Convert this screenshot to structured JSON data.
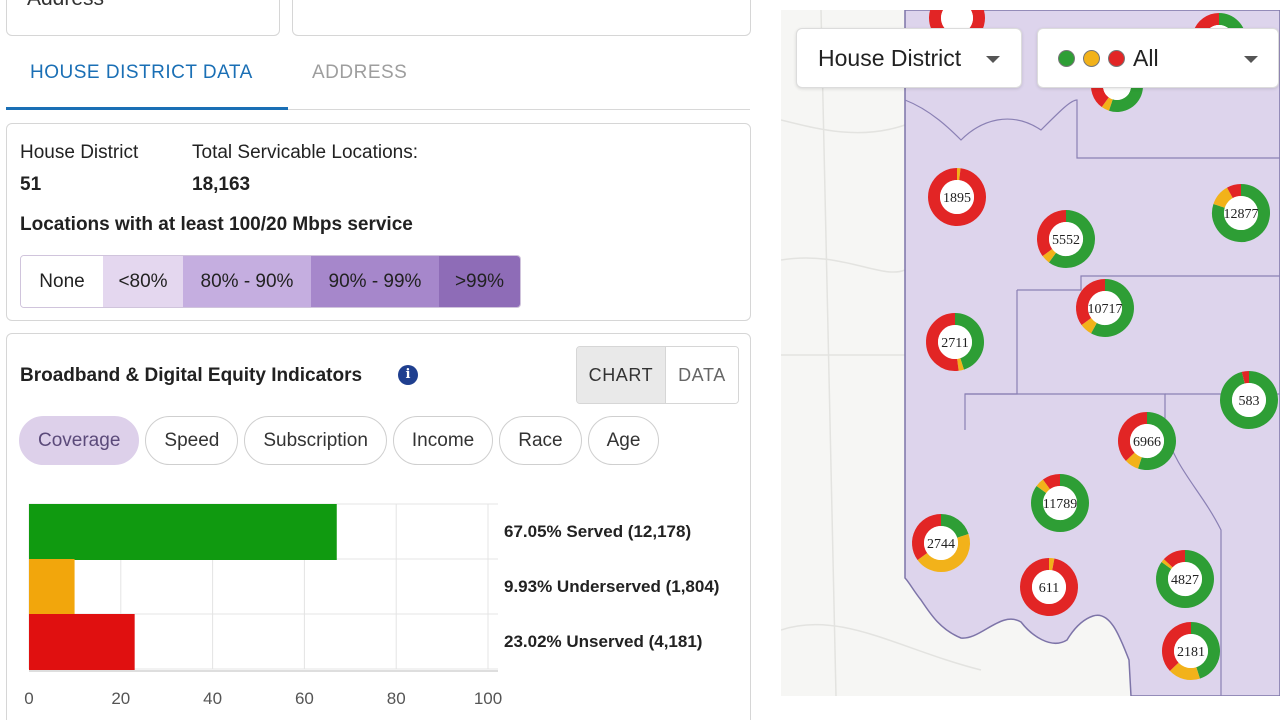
{
  "search": {
    "address_label": "Address"
  },
  "tabs": [
    {
      "label": "HOUSE DISTRICT DATA"
    },
    {
      "label": "ADDRESS"
    }
  ],
  "summary": {
    "district_label": "House District",
    "district_value": "51",
    "locations_label": "Total Servicable Locations:",
    "locations_value": "18,163",
    "service_title": "Locations with at least 100/20 Mbps service",
    "legend": [
      {
        "label": "None",
        "color": "#ffffff"
      },
      {
        "label": "<80%",
        "color": "#e4d7ef"
      },
      {
        "label": "80% - 90%",
        "color": "#c5aee0"
      },
      {
        "label": "90% - 99%",
        "color": "#a687cb"
      },
      {
        "label": ">99%",
        "color": "#8e6cb7"
      }
    ]
  },
  "indicators": {
    "title": "Broadband & Digital Equity Indicators",
    "info_icon": "info-icon",
    "view_toggle": [
      "CHART",
      "DATA"
    ],
    "pills": [
      "Coverage",
      "Speed",
      "Subscription",
      "Income",
      "Race",
      "Age"
    ],
    "selected_pill": "Coverage"
  },
  "chart_data": {
    "type": "bar",
    "orientation": "horizontal",
    "categories": [
      "Served",
      "Underserved",
      "Unserved"
    ],
    "values": [
      67.05,
      9.93,
      23.02
    ],
    "labels": [
      "67.05% Served (12,178)",
      "9.93% Underserved (1,804)",
      "23.02% Unserved (4,181)"
    ],
    "colors": [
      "#109a10",
      "#f2a60c",
      "#e01010"
    ],
    "xlim": [
      0,
      100
    ],
    "xticks": [
      0,
      20,
      40,
      60,
      80,
      100
    ],
    "grid": true
  },
  "map": {
    "district_select": "House District",
    "status_select": "All",
    "status_colors": [
      "#2e9e35",
      "#f2b21a",
      "#e22525"
    ],
    "markers": [
      {
        "label": "",
        "served": 0.05,
        "under": 0.0
      },
      {
        "label": "",
        "served": 0.5,
        "under": 0.1
      },
      {
        "label": "",
        "served": 0.55,
        "under": 0.05
      },
      {
        "label": "1895",
        "served": 0.0,
        "under": 0.02
      },
      {
        "label": "5552",
        "served": 0.6,
        "under": 0.05
      },
      {
        "label": "12877",
        "served": 0.8,
        "under": 0.12
      },
      {
        "label": "10717",
        "served": 0.58,
        "under": 0.07
      },
      {
        "label": "2711",
        "served": 0.45,
        "under": 0.03
      },
      {
        "label": "583",
        "served": 0.96,
        "under": 0.0
      },
      {
        "label": "6966",
        "served": 0.55,
        "under": 0.08
      },
      {
        "label": "11789",
        "served": 0.85,
        "under": 0.05
      },
      {
        "label": "2744",
        "served": 0.2,
        "under": 0.45
      },
      {
        "label": "611",
        "served": 0.0,
        "under": 0.03
      },
      {
        "label": "4827",
        "served": 0.85,
        "under": 0.02
      },
      {
        "label": "2181",
        "served": 0.45,
        "under": 0.18
      }
    ]
  }
}
